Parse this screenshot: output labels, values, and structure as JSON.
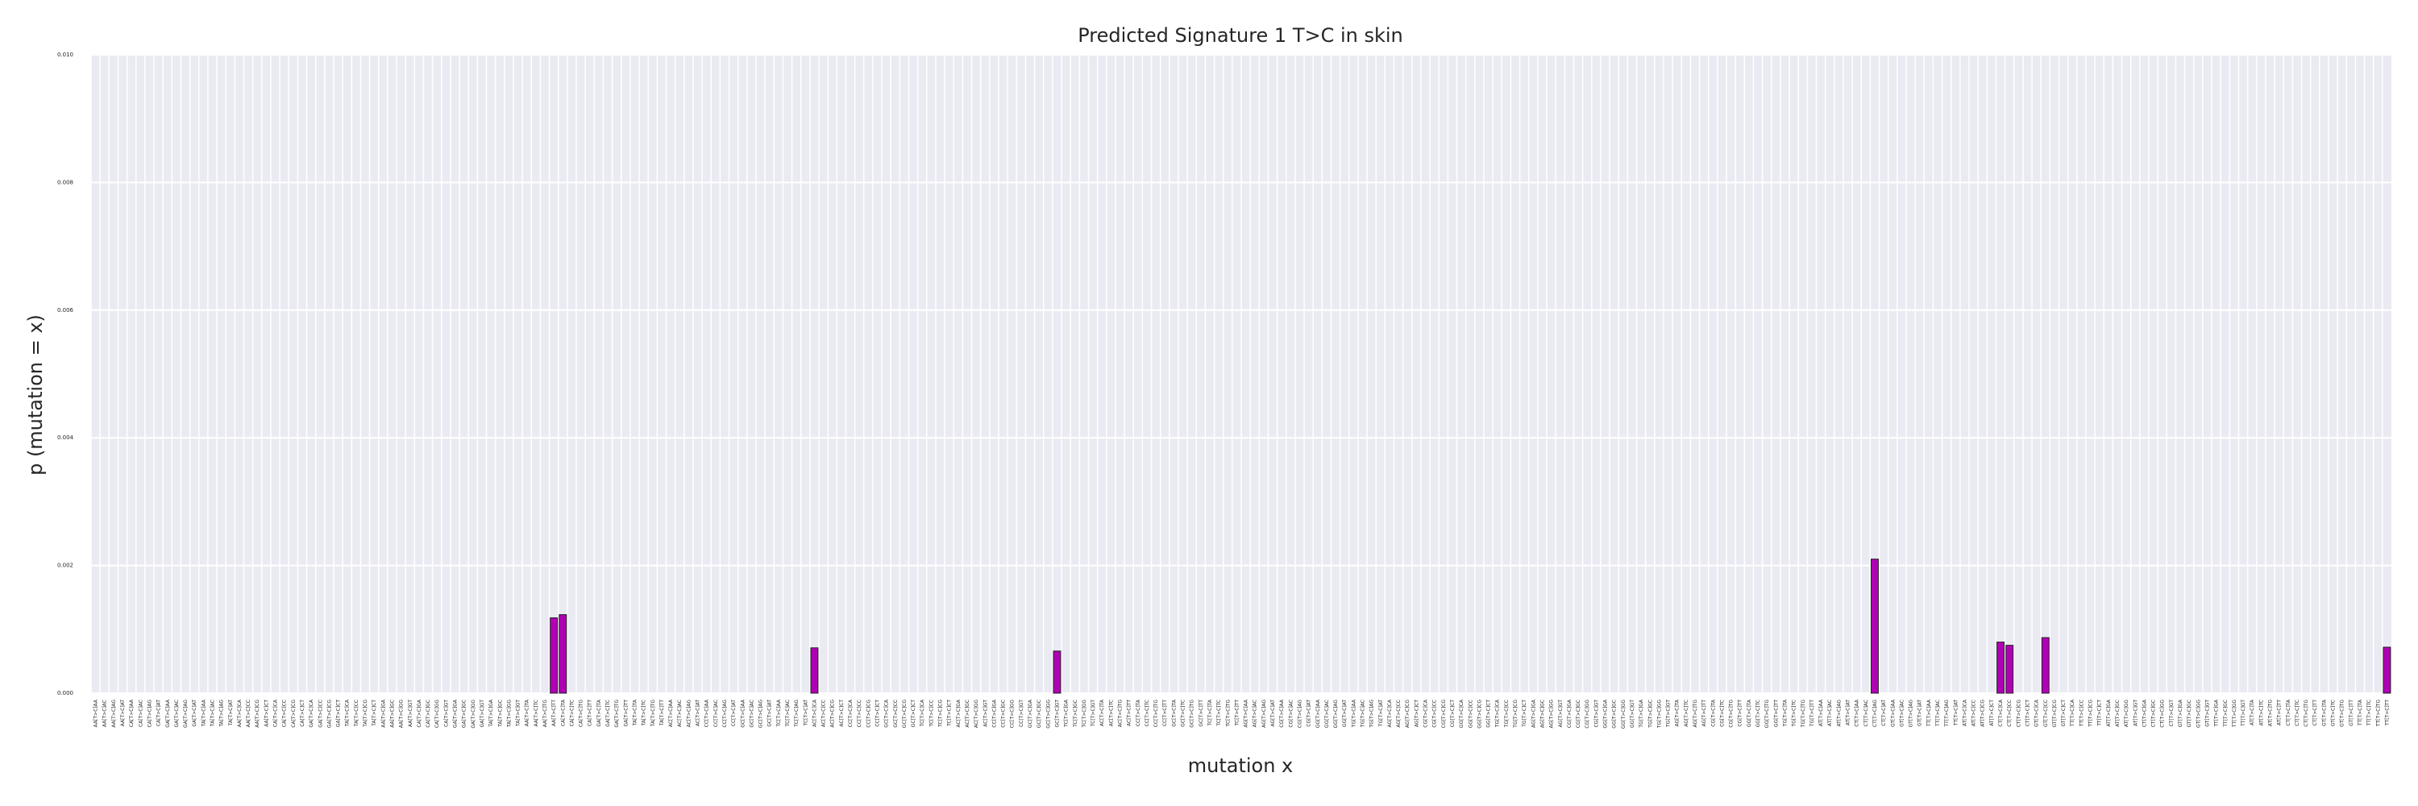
{
  "chart_data": {
    "type": "bar",
    "title": "Predicted Signature 1 T>C in skin",
    "xlabel": "mutation x",
    "ylabel": "p (mutation = x)",
    "ylim": [
      0,
      0.01
    ],
    "yticks": [
      "0.000",
      "0.002",
      "0.004",
      "0.006",
      "0.008",
      "0.010"
    ],
    "grid": true,
    "bar_color": "#b000b5",
    "background_color": "#eaeaf2",
    "categories": [
      "AA[T>C]AA",
      "AA[T>C]AC",
      "AA[T>C]AG",
      "AA[T>C]AT",
      "CA[T>C]AA",
      "CA[T>C]AC",
      "CA[T>C]AG",
      "CA[T>C]AT",
      "GA[T>C]AA",
      "GA[T>C]AC",
      "GA[T>C]AG",
      "GA[T>C]AT",
      "TA[T>C]AA",
      "TA[T>C]AC",
      "TA[T>C]AG",
      "TA[T>C]AT",
      "AA[T>C]CA",
      "AA[T>C]CC",
      "AA[T>C]CG",
      "AA[T>C]CT",
      "CA[T>C]CA",
      "CA[T>C]CC",
      "CA[T>C]CG",
      "CA[T>C]CT",
      "GA[T>C]CA",
      "GA[T>C]CC",
      "GA[T>C]CG",
      "GA[T>C]CT",
      "TA[T>C]CA",
      "TA[T>C]CC",
      "TA[T>C]CG",
      "TA[T>C]CT",
      "AA[T>C]GA",
      "AA[T>C]GC",
      "AA[T>C]GG",
      "AA[T>C]GT",
      "CA[T>C]GA",
      "CA[T>C]GC",
      "CA[T>C]GG",
      "CA[T>C]GT",
      "GA[T>C]GA",
      "GA[T>C]GC",
      "GA[T>C]GG",
      "GA[T>C]GT",
      "TA[T>C]GA",
      "TA[T>C]GC",
      "TA[T>C]GG",
      "TA[T>C]GT",
      "AA[T>C]TA",
      "AA[T>C]TC",
      "AA[T>C]TG",
      "AA[T>C]TT",
      "CA[T>C]TA",
      "CA[T>C]TC",
      "CA[T>C]TG",
      "CA[T>C]TT",
      "GA[T>C]TA",
      "GA[T>C]TC",
      "GA[T>C]TG",
      "GA[T>C]TT",
      "TA[T>C]TA",
      "TA[T>C]TC",
      "TA[T>C]TG",
      "TA[T>C]TT",
      "AC[T>C]AA",
      "AC[T>C]AC",
      "AC[T>C]AG",
      "AC[T>C]AT",
      "CC[T>C]AA",
      "CC[T>C]AC",
      "CC[T>C]AG",
      "CC[T>C]AT",
      "GC[T>C]AA",
      "GC[T>C]AC",
      "GC[T>C]AG",
      "GC[T>C]AT",
      "TC[T>C]AA",
      "TC[T>C]AC",
      "TC[T>C]AG",
      "TC[T>C]AT",
      "AC[T>C]CA",
      "AC[T>C]CC",
      "AC[T>C]CG",
      "AC[T>C]CT",
      "CC[T>C]CA",
      "CC[T>C]CC",
      "CC[T>C]CG",
      "CC[T>C]CT",
      "GC[T>C]CA",
      "GC[T>C]CC",
      "GC[T>C]CG",
      "GC[T>C]CT",
      "TC[T>C]CA",
      "TC[T>C]CC",
      "TC[T>C]CG",
      "TC[T>C]CT",
      "AC[T>C]GA",
      "AC[T>C]GC",
      "AC[T>C]GG",
      "AC[T>C]GT",
      "CC[T>C]GA",
      "CC[T>C]GC",
      "CC[T>C]GG",
      "CC[T>C]GT",
      "GC[T>C]GA",
      "GC[T>C]GC",
      "GC[T>C]GG",
      "GC[T>C]GT",
      "TC[T>C]GA",
      "TC[T>C]GC",
      "TC[T>C]GG",
      "TC[T>C]GT",
      "AC[T>C]TA",
      "AC[T>C]TC",
      "AC[T>C]TG",
      "AC[T>C]TT",
      "CC[T>C]TA",
      "CC[T>C]TC",
      "CC[T>C]TG",
      "CC[T>C]TT",
      "GC[T>C]TA",
      "GC[T>C]TC",
      "GC[T>C]TG",
      "GC[T>C]TT",
      "TC[T>C]TA",
      "TC[T>C]TC",
      "TC[T>C]TG",
      "TC[T>C]TT",
      "AG[T>C]AA",
      "AG[T>C]AC",
      "AG[T>C]AG",
      "AG[T>C]AT",
      "CG[T>C]AA",
      "CG[T>C]AC",
      "CG[T>C]AG",
      "CG[T>C]AT",
      "GG[T>C]AA",
      "GG[T>C]AC",
      "GG[T>C]AG",
      "GG[T>C]AT",
      "TG[T>C]AA",
      "TG[T>C]AC",
      "TG[T>C]AG",
      "TG[T>C]AT",
      "AG[T>C]CA",
      "AG[T>C]CC",
      "AG[T>C]CG",
      "AG[T>C]CT",
      "CG[T>C]CA",
      "CG[T>C]CC",
      "CG[T>C]CG",
      "CG[T>C]CT",
      "GG[T>C]CA",
      "GG[T>C]CC",
      "GG[T>C]CG",
      "GG[T>C]CT",
      "TG[T>C]CA",
      "TG[T>C]CC",
      "TG[T>C]CG",
      "TG[T>C]CT",
      "AG[T>C]GA",
      "AG[T>C]GC",
      "AG[T>C]GG",
      "AG[T>C]GT",
      "CG[T>C]GA",
      "CG[T>C]GC",
      "CG[T>C]GG",
      "CG[T>C]GT",
      "GG[T>C]GA",
      "GG[T>C]GC",
      "GG[T>C]GG",
      "GG[T>C]GT",
      "TG[T>C]GA",
      "TG[T>C]GC",
      "TG[T>C]GG",
      "TG[T>C]GT",
      "AG[T>C]TA",
      "AG[T>C]TC",
      "AG[T>C]TG",
      "AG[T>C]TT",
      "CG[T>C]TA",
      "CG[T>C]TC",
      "CG[T>C]TG",
      "CG[T>C]TT",
      "GG[T>C]TA",
      "GG[T>C]TC",
      "GG[T>C]TG",
      "GG[T>C]TT",
      "TG[T>C]TA",
      "TG[T>C]TC",
      "TG[T>C]TG",
      "TG[T>C]TT",
      "AT[T>C]AA",
      "AT[T>C]AC",
      "AT[T>C]AG",
      "AT[T>C]AT",
      "CT[T>C]AA",
      "CT[T>C]AC",
      "CT[T>C]AG",
      "CT[T>C]AT",
      "GT[T>C]AA",
      "GT[T>C]AC",
      "GT[T>C]AG",
      "GT[T>C]AT",
      "TT[T>C]AA",
      "TT[T>C]AC",
      "TT[T>C]AG",
      "TT[T>C]AT",
      "AT[T>C]CA",
      "AT[T>C]CC",
      "AT[T>C]CG",
      "AT[T>C]CT",
      "CT[T>C]CA",
      "CT[T>C]CC",
      "CT[T>C]CG",
      "CT[T>C]CT",
      "GT[T>C]CA",
      "GT[T>C]CC",
      "GT[T>C]CG",
      "GT[T>C]CT",
      "TT[T>C]CA",
      "TT[T>C]CC",
      "TT[T>C]CG",
      "TT[T>C]CT",
      "AT[T>C]GA",
      "AT[T>C]GC",
      "AT[T>C]GG",
      "AT[T>C]GT",
      "CT[T>C]GA",
      "CT[T>C]GC",
      "CT[T>C]GG",
      "CT[T>C]GT",
      "GT[T>C]GA",
      "GT[T>C]GC",
      "GT[T>C]GG",
      "GT[T>C]GT",
      "TT[T>C]GA",
      "TT[T>C]GC",
      "TT[T>C]GG",
      "TT[T>C]GT",
      "AT[T>C]TA",
      "AT[T>C]TC",
      "AT[T>C]TG",
      "AT[T>C]TT",
      "CT[T>C]TA",
      "CT[T>C]TC",
      "CT[T>C]TG",
      "CT[T>C]TT",
      "GT[T>C]TA",
      "GT[T>C]TC",
      "GT[T>C]TG",
      "GT[T>C]TT",
      "TT[T>C]TA",
      "TT[T>C]TC",
      "TT[T>C]TG",
      "TT[T>C]TT"
    ],
    "nonzero_values": {
      "51": 0.00118,
      "52": 0.00123,
      "80": 0.00071,
      "107": 0.00066,
      "198": 0.0021,
      "212": 0.0008,
      "213": 0.00075,
      "217": 0.00087,
      "255": 0.00072
    }
  }
}
